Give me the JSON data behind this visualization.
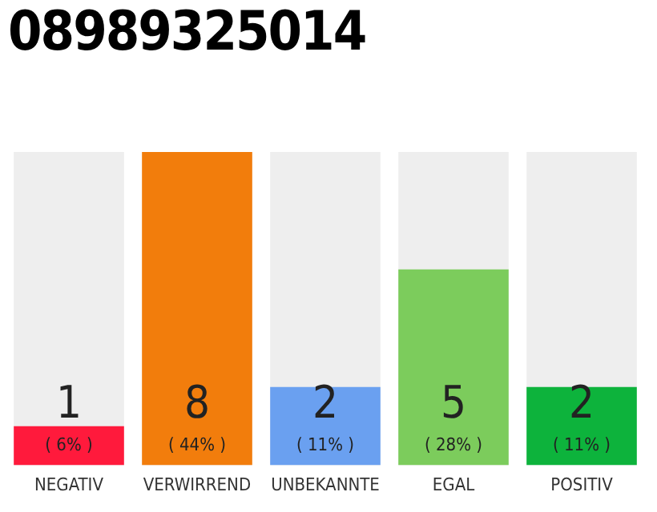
{
  "chart_data": {
    "type": "bar",
    "title": "08989325014",
    "categories": [
      "NEGATIV",
      "VERWIRREND",
      "UNBEKANNTE",
      "EGAL",
      "POSITIV"
    ],
    "values": [
      1,
      8,
      2,
      5,
      2
    ],
    "colors": [
      "#ff1a3c",
      "#f27d0c",
      "#6aa0f0",
      "#7ccc5c",
      "#0db33c"
    ],
    "data_labels": true,
    "annotations": [
      "( 6% )",
      "( 44% )",
      "( 11% )",
      "( 28% )",
      "( 11% )"
    ],
    "grid": false,
    "legend": false
  }
}
